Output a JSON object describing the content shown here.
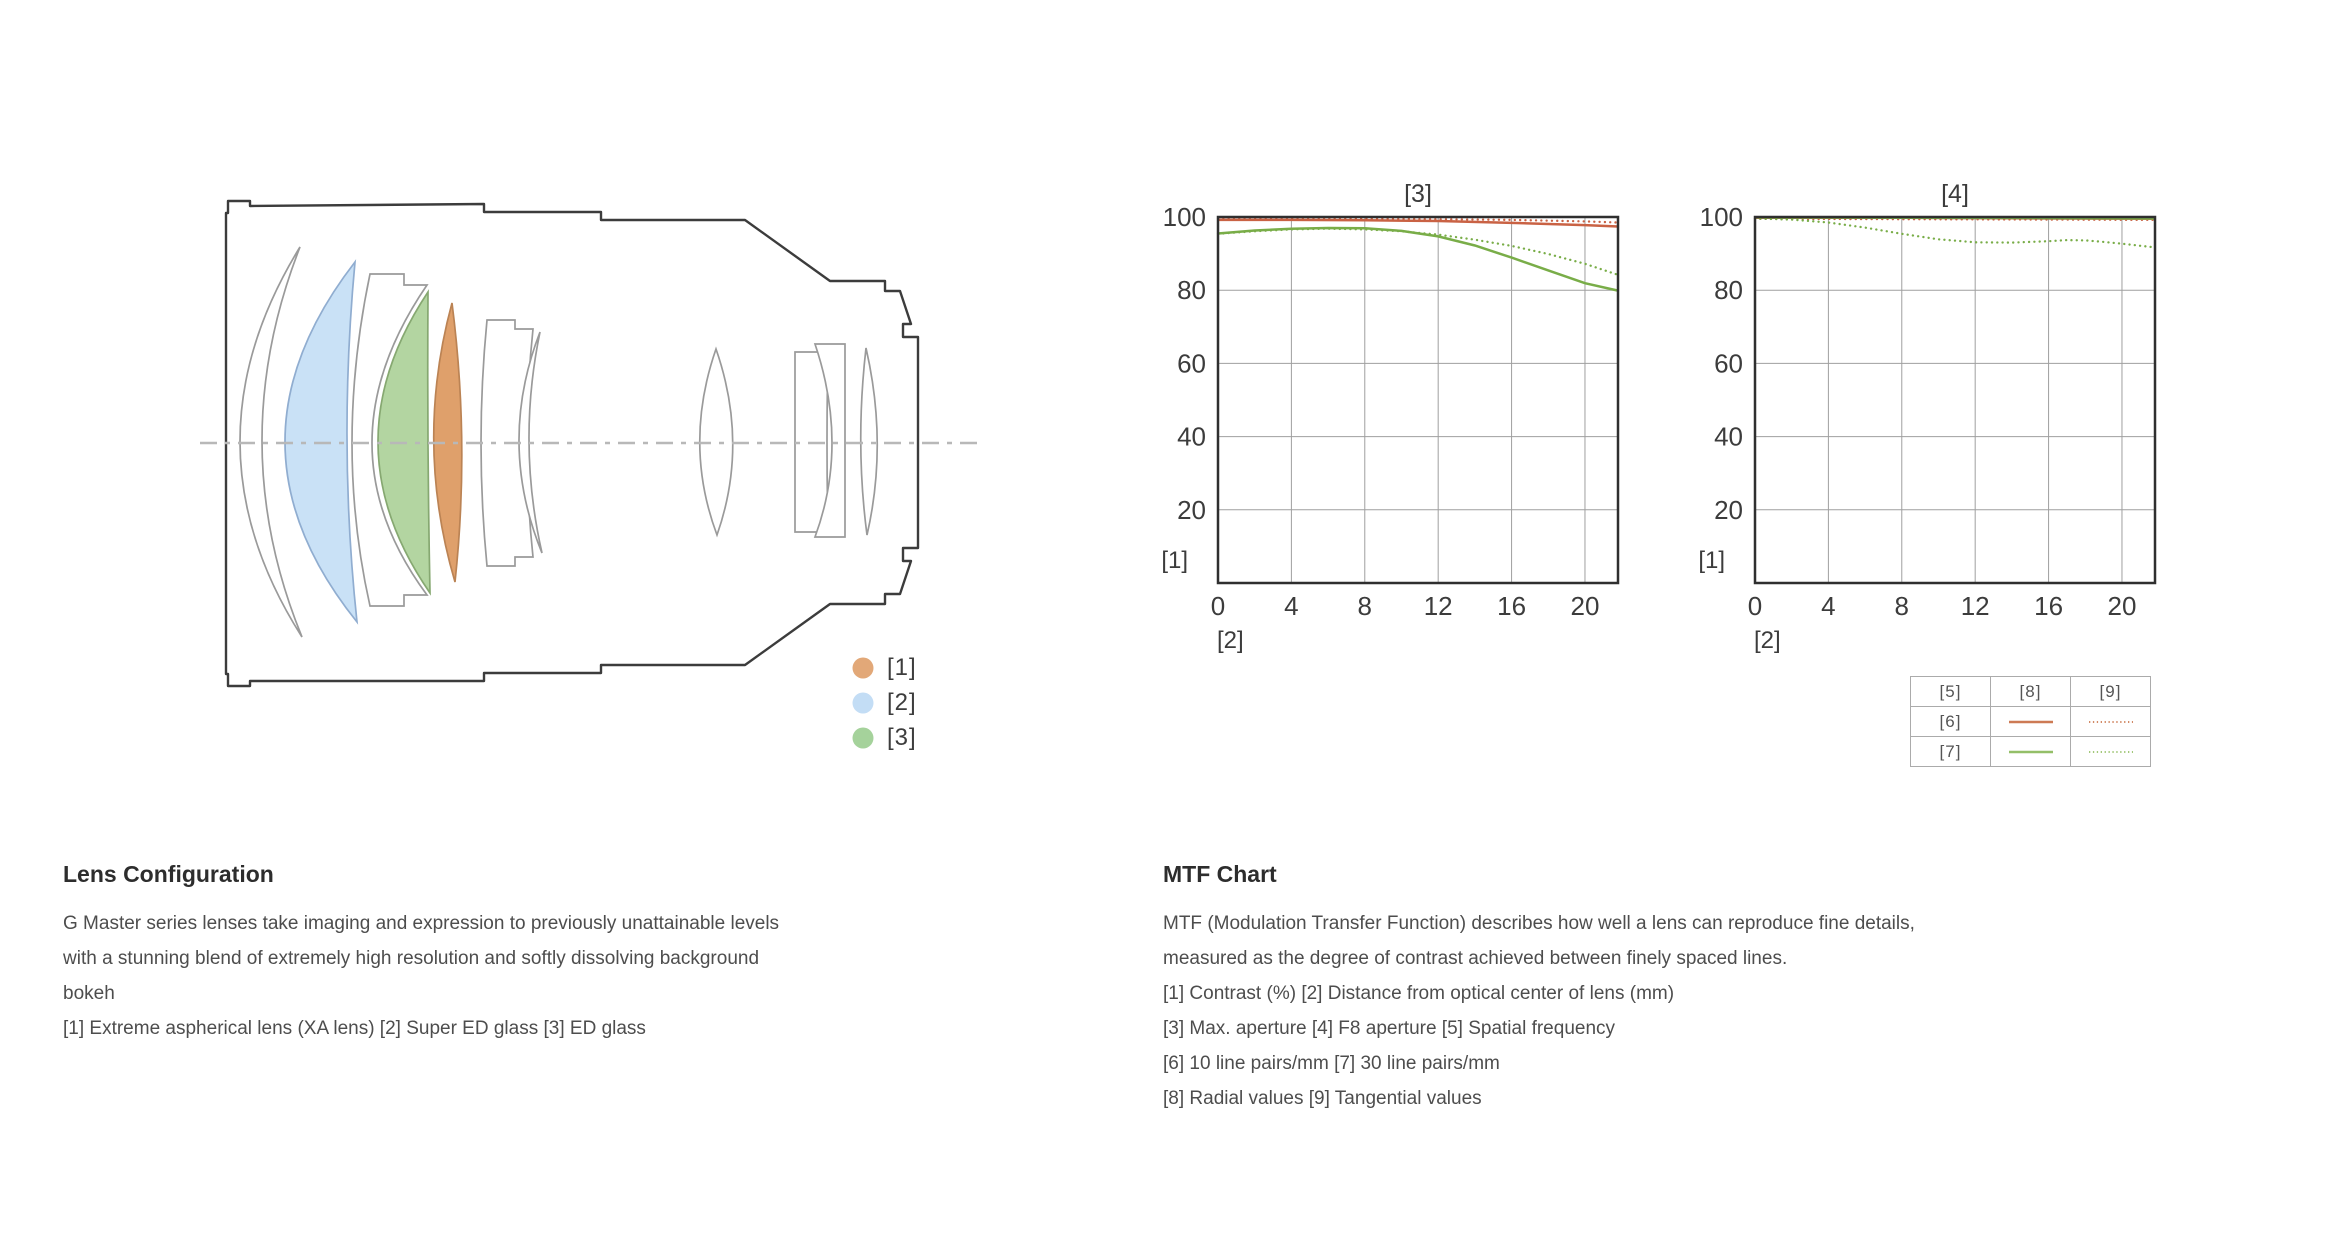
{
  "lens_configuration": {
    "heading": "Lens Configuration",
    "description": "G Master series lenses take imaging and expression to previously unattainable levels\nwith a stunning blend of extremely high resolution and softly dissolving background\nbokeh",
    "elements_note": "[1] Extreme aspherical lens (XA lens) [2] Super ED glass [3] ED glass",
    "legend": [
      {
        "label": "[1]",
        "color": "#e2a878"
      },
      {
        "label": "[2]",
        "color": "#c3ddf5"
      },
      {
        "label": "[3]",
        "color": "#a5d29b"
      }
    ],
    "diagram": {
      "xa_fill": "#dfa06b",
      "super_ed_fill": "#c9e1f6",
      "ed_fill": "#b3d5a1"
    }
  },
  "mtf": {
    "heading": "MTF Chart",
    "description": "MTF (Modulation Transfer Function) describes how well a lens can reproduce fine details,\nmeasured as the degree of contrast achieved between finely spaced lines.",
    "notes": "[1] Contrast (%) [2] Distance from optical center of lens (mm)\n[3] Max. aperture [4] F8 aperture [5] Spatial frequency\n[6] 10 line pairs/mm [7] 30 line pairs/mm\n[8] Radial values [9] Tangential values",
    "legend_table": {
      "headers": [
        "[5]",
        "[8]",
        "[9]"
      ],
      "rows": [
        {
          "label": "[6]",
          "solid_color": "#cd7a54",
          "dotted_color": "#d28a66"
        },
        {
          "label": "[7]",
          "solid_color": "#94bf68",
          "dotted_color": "#a3c87a"
        }
      ]
    }
  },
  "chart_data": [
    {
      "type": "line",
      "title": "[3]",
      "y_axis_note": "[1]",
      "x_axis_note": "[2]",
      "xlim": [
        0,
        21.8
      ],
      "ylim": [
        0,
        100
      ],
      "x_ticks": [
        0,
        4,
        8,
        12,
        16,
        20
      ],
      "y_ticks": [
        20,
        40,
        60,
        80,
        100
      ],
      "grid": true,
      "series": [
        {
          "name": "10 line pairs/mm radial",
          "color": "#c96244",
          "style": "solid",
          "points": [
            [
              0,
              99.2
            ],
            [
              4,
              99.2
            ],
            [
              8,
              99.1
            ],
            [
              12,
              98.9
            ],
            [
              16,
              98.4
            ],
            [
              20,
              97.8
            ],
            [
              21.8,
              97.4
            ]
          ]
        },
        {
          "name": "10 line pairs/mm tangential",
          "color": "#c96244",
          "style": "dotted",
          "points": [
            [
              0,
              99.5
            ],
            [
              4,
              99.5
            ],
            [
              8,
              99.5
            ],
            [
              12,
              99.4
            ],
            [
              16,
              99.2
            ],
            [
              20,
              98.8
            ],
            [
              21.8,
              98.5
            ]
          ]
        },
        {
          "name": "30 line pairs/mm radial",
          "color": "#79ad48",
          "style": "solid",
          "points": [
            [
              0,
              95.5
            ],
            [
              2,
              96.3
            ],
            [
              4,
              96.8
            ],
            [
              6,
              97.0
            ],
            [
              8,
              96.9
            ],
            [
              10,
              96.2
            ],
            [
              12,
              94.7
            ],
            [
              14,
              92.2
            ],
            [
              16,
              88.9
            ],
            [
              18,
              85.4
            ],
            [
              20,
              81.9
            ],
            [
              21.8,
              79.9
            ]
          ]
        },
        {
          "name": "30 line pairs/mm tangential",
          "color": "#79ad48",
          "style": "dotted",
          "points": [
            [
              0,
              95.4
            ],
            [
              2,
              96.1
            ],
            [
              4,
              96.6
            ],
            [
              6,
              96.8
            ],
            [
              8,
              96.6
            ],
            [
              10,
              96.1
            ],
            [
              12,
              95.2
            ],
            [
              14,
              93.8
            ],
            [
              16,
              92.1
            ],
            [
              18,
              89.9
            ],
            [
              20,
              87.2
            ],
            [
              21.8,
              84.2
            ]
          ]
        }
      ]
    },
    {
      "type": "line",
      "title": "[4]",
      "y_axis_note": "[1]",
      "x_axis_note": "[2]",
      "xlim": [
        0,
        21.8
      ],
      "ylim": [
        0,
        100
      ],
      "x_ticks": [
        0,
        4,
        8,
        12,
        16,
        20
      ],
      "y_ticks": [
        20,
        40,
        60,
        80,
        100
      ],
      "grid": true,
      "series": [
        {
          "name": "10 line pairs/mm radial",
          "color": "#c96244",
          "style": "solid",
          "points": [
            [
              0,
              99.8
            ],
            [
              8,
              99.8
            ],
            [
              16,
              99.6
            ],
            [
              21.8,
              99.5
            ]
          ]
        },
        {
          "name": "10 line pairs/mm tangential",
          "color": "#c96244",
          "style": "dotted",
          "points": [
            [
              0,
              99.5
            ],
            [
              8,
              99.4
            ],
            [
              16,
              99.3
            ],
            [
              21.8,
              99.2
            ]
          ]
        },
        {
          "name": "30 line pairs/mm radial",
          "color": "#79ad48",
          "style": "solid",
          "points": [
            [
              0,
              99.9
            ],
            [
              8,
              99.8
            ],
            [
              16,
              99.7
            ],
            [
              21.8,
              99.6
            ]
          ]
        },
        {
          "name": "30 line pairs/mm tangential",
          "color": "#79ad48",
          "style": "dotted",
          "points": [
            [
              0,
              99.6
            ],
            [
              2,
              99.3
            ],
            [
              4,
              98.5
            ],
            [
              6,
              97.1
            ],
            [
              8,
              95.4
            ],
            [
              10,
              93.9
            ],
            [
              12,
              93.1
            ],
            [
              14,
              93.0
            ],
            [
              16,
              93.4
            ],
            [
              17,
              93.7
            ],
            [
              18,
              93.6
            ],
            [
              19,
              93.2
            ],
            [
              20,
              92.7
            ],
            [
              21.8,
              91.7
            ]
          ]
        }
      ]
    }
  ]
}
